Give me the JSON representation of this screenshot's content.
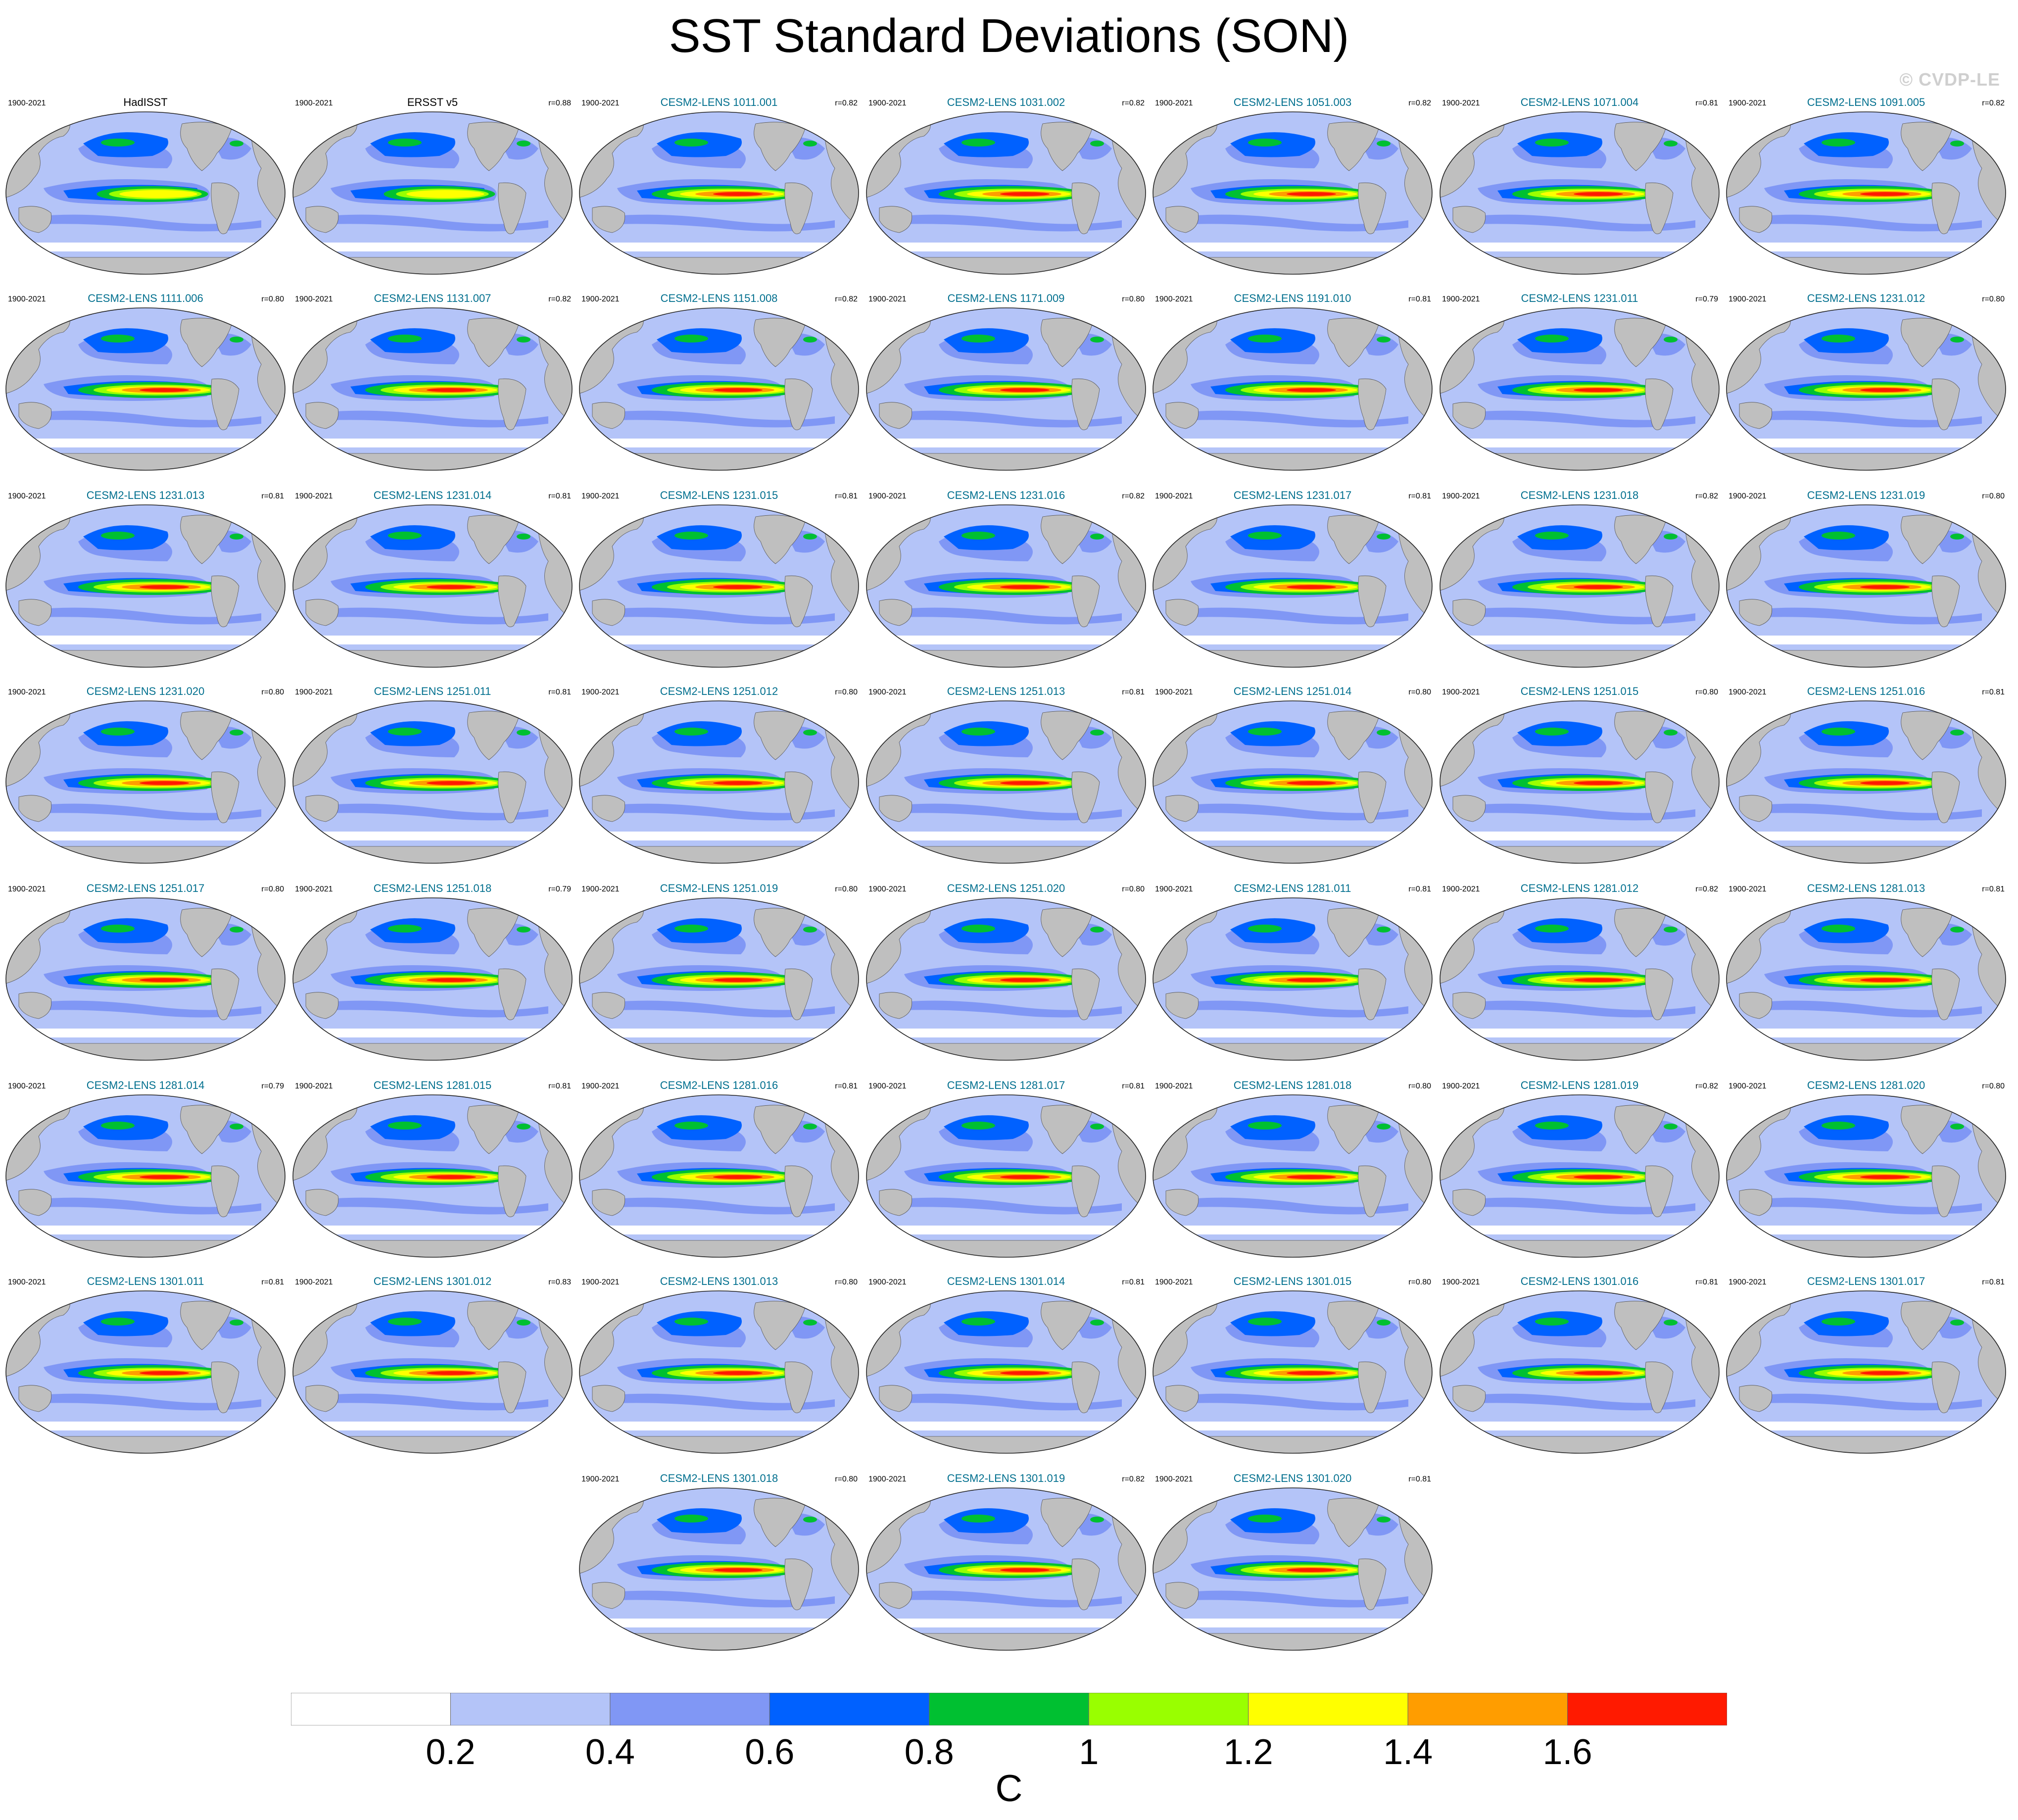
{
  "title": "SST Standard Deviations (SON)",
  "watermark": "© CVDP-LE",
  "chart_data": {
    "type": "heatmap",
    "title": "SST Standard Deviations (SON)",
    "projection": "global map (Robinson-like), Pacific-centered",
    "panels": [
      {
        "title": "HadISST",
        "period": "1900-2021",
        "r": ""
      },
      {
        "title": "ERSST v5",
        "period": "1900-2021",
        "r": "r=0.88"
      },
      {
        "title": "CESM2-LENS 1011.001",
        "period": "1900-2021",
        "r": "r=0.82"
      },
      {
        "title": "CESM2-LENS 1031.002",
        "period": "1900-2021",
        "r": "r=0.82"
      },
      {
        "title": "CESM2-LENS 1051.003",
        "period": "1900-2021",
        "r": "r=0.82"
      },
      {
        "title": "CESM2-LENS 1071.004",
        "period": "1900-2021",
        "r": "r=0.81"
      },
      {
        "title": "CESM2-LENS 1091.005",
        "period": "1900-2021",
        "r": "r=0.82"
      },
      {
        "title": "CESM2-LENS 1111.006",
        "period": "1900-2021",
        "r": "r=0.80"
      },
      {
        "title": "CESM2-LENS 1131.007",
        "period": "1900-2021",
        "r": "r=0.82"
      },
      {
        "title": "CESM2-LENS 1151.008",
        "period": "1900-2021",
        "r": "r=0.82"
      },
      {
        "title": "CESM2-LENS 1171.009",
        "period": "1900-2021",
        "r": "r=0.80"
      },
      {
        "title": "CESM2-LENS 1191.010",
        "period": "1900-2021",
        "r": "r=0.81"
      },
      {
        "title": "CESM2-LENS 1231.011",
        "period": "1900-2021",
        "r": "r=0.79"
      },
      {
        "title": "CESM2-LENS 1231.012",
        "period": "1900-2021",
        "r": "r=0.80"
      },
      {
        "title": "CESM2-LENS 1231.013",
        "period": "1900-2021",
        "r": "r=0.81"
      },
      {
        "title": "CESM2-LENS 1231.014",
        "period": "1900-2021",
        "r": "r=0.81"
      },
      {
        "title": "CESM2-LENS 1231.015",
        "period": "1900-2021",
        "r": "r=0.81"
      },
      {
        "title": "CESM2-LENS 1231.016",
        "period": "1900-2021",
        "r": "r=0.82"
      },
      {
        "title": "CESM2-LENS 1231.017",
        "period": "1900-2021",
        "r": "r=0.81"
      },
      {
        "title": "CESM2-LENS 1231.018",
        "period": "1900-2021",
        "r": "r=0.82"
      },
      {
        "title": "CESM2-LENS 1231.019",
        "period": "1900-2021",
        "r": "r=0.80"
      },
      {
        "title": "CESM2-LENS 1231.020",
        "period": "1900-2021",
        "r": "r=0.80"
      },
      {
        "title": "CESM2-LENS 1251.011",
        "period": "1900-2021",
        "r": "r=0.81"
      },
      {
        "title": "CESM2-LENS 1251.012",
        "period": "1900-2021",
        "r": "r=0.80"
      },
      {
        "title": "CESM2-LENS 1251.013",
        "period": "1900-2021",
        "r": "r=0.81"
      },
      {
        "title": "CESM2-LENS 1251.014",
        "period": "1900-2021",
        "r": "r=0.80"
      },
      {
        "title": "CESM2-LENS 1251.015",
        "period": "1900-2021",
        "r": "r=0.80"
      },
      {
        "title": "CESM2-LENS 1251.016",
        "period": "1900-2021",
        "r": "r=0.81"
      },
      {
        "title": "CESM2-LENS 1251.017",
        "period": "1900-2021",
        "r": "r=0.80"
      },
      {
        "title": "CESM2-LENS 1251.018",
        "period": "1900-2021",
        "r": "r=0.79"
      },
      {
        "title": "CESM2-LENS 1251.019",
        "period": "1900-2021",
        "r": "r=0.80"
      },
      {
        "title": "CESM2-LENS 1251.020",
        "period": "1900-2021",
        "r": "r=0.80"
      },
      {
        "title": "CESM2-LENS 1281.011",
        "period": "1900-2021",
        "r": "r=0.81"
      },
      {
        "title": "CESM2-LENS 1281.012",
        "period": "1900-2021",
        "r": "r=0.82"
      },
      {
        "title": "CESM2-LENS 1281.013",
        "period": "1900-2021",
        "r": "r=0.81"
      },
      {
        "title": "CESM2-LENS 1281.014",
        "period": "1900-2021",
        "r": "r=0.79"
      },
      {
        "title": "CESM2-LENS 1281.015",
        "period": "1900-2021",
        "r": "r=0.81"
      },
      {
        "title": "CESM2-LENS 1281.016",
        "period": "1900-2021",
        "r": "r=0.81"
      },
      {
        "title": "CESM2-LENS 1281.017",
        "period": "1900-2021",
        "r": "r=0.81"
      },
      {
        "title": "CESM2-LENS 1281.018",
        "period": "1900-2021",
        "r": "r=0.80"
      },
      {
        "title": "CESM2-LENS 1281.019",
        "period": "1900-2021",
        "r": "r=0.82"
      },
      {
        "title": "CESM2-LENS 1281.020",
        "period": "1900-2021",
        "r": "r=0.80"
      },
      {
        "title": "CESM2-LENS 1301.011",
        "period": "1900-2021",
        "r": "r=0.81"
      },
      {
        "title": "CESM2-LENS 1301.012",
        "period": "1900-2021",
        "r": "r=0.83"
      },
      {
        "title": "CESM2-LENS 1301.013",
        "period": "1900-2021",
        "r": "r=0.80"
      },
      {
        "title": "CESM2-LENS 1301.014",
        "period": "1900-2021",
        "r": "r=0.81"
      },
      {
        "title": "CESM2-LENS 1301.015",
        "period": "1900-2021",
        "r": "r=0.80"
      },
      {
        "title": "CESM2-LENS 1301.016",
        "period": "1900-2021",
        "r": "r=0.81"
      },
      {
        "title": "CESM2-LENS 1301.017",
        "period": "1900-2021",
        "r": "r=0.81"
      },
      {
        "title": "CESM2-LENS 1301.018",
        "period": "1900-2021",
        "r": "r=0.80"
      },
      {
        "title": "CESM2-LENS 1301.019",
        "period": "1900-2021",
        "r": "r=0.82"
      },
      {
        "title": "CESM2-LENS 1301.020",
        "period": "1900-2021",
        "r": "r=0.81"
      }
    ],
    "colorbar": {
      "unit": "C",
      "levels": [
        0.2,
        0.4,
        0.6,
        0.8,
        1,
        1.2,
        1.4,
        1.6
      ],
      "labels": [
        "0.2",
        "0.4",
        "0.6",
        "0.8",
        "1",
        "1.2",
        "1.4",
        "1.6"
      ],
      "colors": [
        "#ffffff",
        "#b4c4f8",
        "#8097f5",
        "#0061ff",
        "#00c031",
        "#99ff00",
        "#ffff00",
        "#ff9d00",
        "#ff1a00"
      ]
    },
    "land_color": "#bfbfbf"
  }
}
